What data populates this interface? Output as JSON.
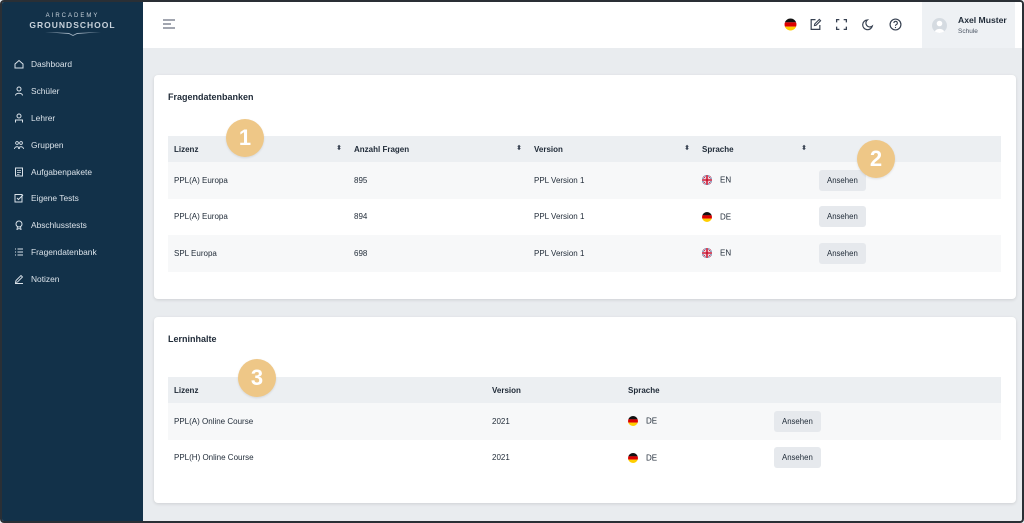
{
  "logo": {
    "top": "AIRCADEMY",
    "main": "GROUNDSCHOOL"
  },
  "sidebar": {
    "items": [
      {
        "label": "Dashboard",
        "icon": "home-icon"
      },
      {
        "label": "Schüler",
        "icon": "user-icon"
      },
      {
        "label": "Lehrer",
        "icon": "teacher-icon"
      },
      {
        "label": "Gruppen",
        "icon": "group-icon"
      },
      {
        "label": "Aufgabenpakete",
        "icon": "package-icon"
      },
      {
        "label": "Eigene Tests",
        "icon": "test-icon"
      },
      {
        "label": "Abschlusstests",
        "icon": "award-icon"
      },
      {
        "label": "Fragendatenbank",
        "icon": "list-icon"
      },
      {
        "label": "Notizen",
        "icon": "pencil-icon"
      }
    ]
  },
  "header": {
    "user_name": "Axel Muster",
    "user_role": "Schule",
    "icons": [
      "german-flag-icon",
      "edit-icon",
      "fullscreen-icon",
      "moon-icon",
      "help-icon"
    ]
  },
  "fragen": {
    "title": "Fragendatenbanken",
    "columns": [
      "Lizenz",
      "Anzahl Fragen",
      "Version",
      "Sprache"
    ],
    "rows": [
      {
        "lizenz": "PPL(A) Europa",
        "anzahl": "895",
        "version": "PPL Version 1",
        "flag": "uk",
        "sprache": "EN",
        "action": "Ansehen"
      },
      {
        "lizenz": "PPL(A) Europa",
        "anzahl": "894",
        "version": "PPL Version 1",
        "flag": "de",
        "sprache": "DE",
        "action": "Ansehen"
      },
      {
        "lizenz": "SPL Europa",
        "anzahl": "698",
        "version": "PPL Version 1",
        "flag": "uk",
        "sprache": "EN",
        "action": "Ansehen"
      }
    ]
  },
  "lern": {
    "title": "Lerninhalte",
    "columns": [
      "Lizenz",
      "Version",
      "Sprache"
    ],
    "rows": [
      {
        "lizenz": "PPL(A) Online Course",
        "version": "2021",
        "flag": "de",
        "sprache": "DE",
        "action": "Ansehen"
      },
      {
        "lizenz": "PPL(H) Online Course",
        "version": "2021",
        "flag": "de",
        "sprache": "DE",
        "action": "Ansehen"
      }
    ]
  },
  "markers": [
    "1",
    "2",
    "3"
  ],
  "colors": {
    "sidebar": "#123149",
    "marker": "#eec787",
    "button": "#e6e9ed"
  }
}
